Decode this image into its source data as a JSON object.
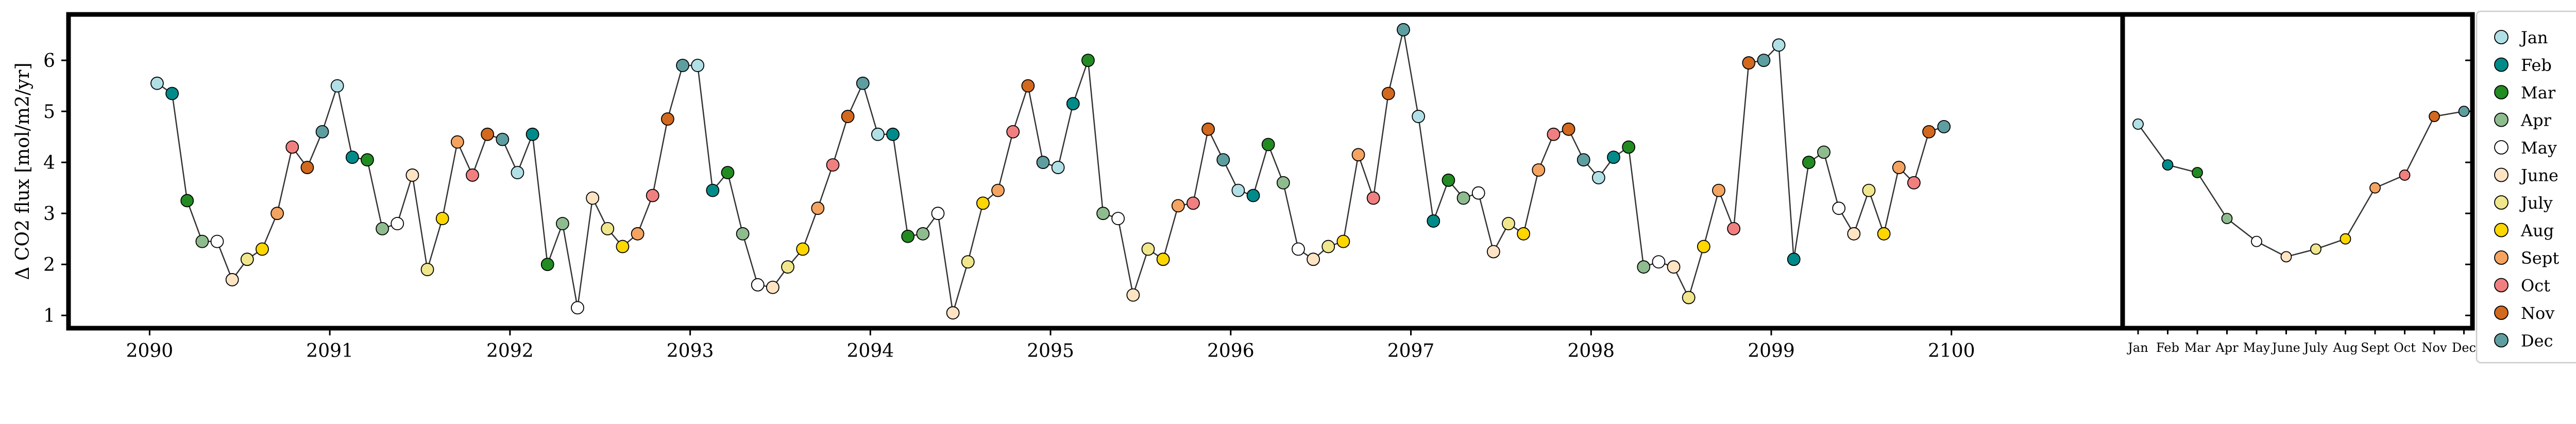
{
  "chart_data": [
    {
      "type": "line",
      "ylabel": "Δ CO2 flux [mol/m2/yr]",
      "xlabel": "",
      "xlim": [
        2089.55,
        2100.95
      ],
      "ylim": [
        0.75,
        6.9
      ],
      "xticks": [
        "2090",
        "2091",
        "2092",
        "2093",
        "2094",
        "2095",
        "2096",
        "2097",
        "2098",
        "2099",
        "2100"
      ],
      "yticks": [
        "1",
        "2",
        "3",
        "4",
        "5",
        "6"
      ],
      "start_year": 2090,
      "grid": false,
      "values": [
        5.55,
        5.35,
        3.25,
        2.45,
        2.45,
        1.7,
        2.1,
        2.3,
        3.0,
        4.3,
        3.9,
        4.6,
        5.5,
        4.1,
        4.05,
        2.7,
        2.8,
        3.75,
        1.9,
        2.9,
        4.4,
        3.75,
        4.55,
        4.45,
        3.8,
        4.55,
        2.0,
        2.8,
        1.15,
        3.3,
        2.7,
        2.35,
        2.6,
        3.35,
        4.85,
        5.9,
        5.9,
        3.45,
        3.8,
        2.6,
        1.6,
        1.55,
        1.95,
        2.3,
        3.1,
        3.95,
        4.9,
        5.55,
        4.55,
        4.55,
        2.55,
        2.6,
        3.0,
        1.05,
        2.05,
        3.2,
        3.45,
        4.6,
        5.5,
        4.0,
        3.9,
        5.15,
        6.0,
        3.0,
        2.9,
        1.4,
        2.3,
        2.1,
        3.15,
        3.2,
        4.65,
        4.05,
        3.45,
        3.35,
        4.35,
        3.6,
        2.3,
        2.1,
        2.35,
        2.45,
        4.15,
        3.3,
        5.35,
        6.6,
        4.9,
        2.85,
        3.65,
        3.3,
        3.4,
        2.25,
        2.8,
        2.6,
        3.85,
        4.55,
        4.65,
        4.05,
        3.7,
        4.1,
        4.3,
        1.95,
        2.05,
        1.95,
        1.35,
        2.35,
        3.45,
        2.7,
        5.95,
        6.0,
        6.3,
        2.1,
        4.0,
        4.2,
        3.1,
        2.6,
        3.45,
        2.6,
        3.9,
        3.6,
        4.6,
        4.7
      ]
    },
    {
      "type": "line",
      "ylim": [
        0.75,
        6.9
      ],
      "categories": [
        "Jan",
        "Feb",
        "Mar",
        "Apr",
        "May",
        "June",
        "July",
        "Aug",
        "Sept",
        "Oct",
        "Nov",
        "Dec"
      ],
      "values": [
        4.75,
        3.95,
        3.8,
        2.9,
        2.45,
        2.15,
        2.3,
        2.5,
        3.5,
        3.75,
        4.9,
        5.0
      ]
    }
  ],
  "legend": {
    "placement": "right",
    "entries": [
      {
        "label": "Jan",
        "color": "#b0e0e6"
      },
      {
        "label": "Feb",
        "color": "#008b8b"
      },
      {
        "label": "Mar",
        "color": "#228b22"
      },
      {
        "label": "Apr",
        "color": "#8fbc8f"
      },
      {
        "label": "May",
        "color": "#ffffff"
      },
      {
        "label": "June",
        "color": "#ffe4c4"
      },
      {
        "label": "July",
        "color": "#f0e68c"
      },
      {
        "label": "Aug",
        "color": "#ffd700"
      },
      {
        "label": "Sept",
        "color": "#f4a460"
      },
      {
        "label": "Oct",
        "color": "#f08080"
      },
      {
        "label": "Nov",
        "color": "#d2691e"
      },
      {
        "label": "Dec",
        "color": "#5f9ea0"
      }
    ]
  }
}
